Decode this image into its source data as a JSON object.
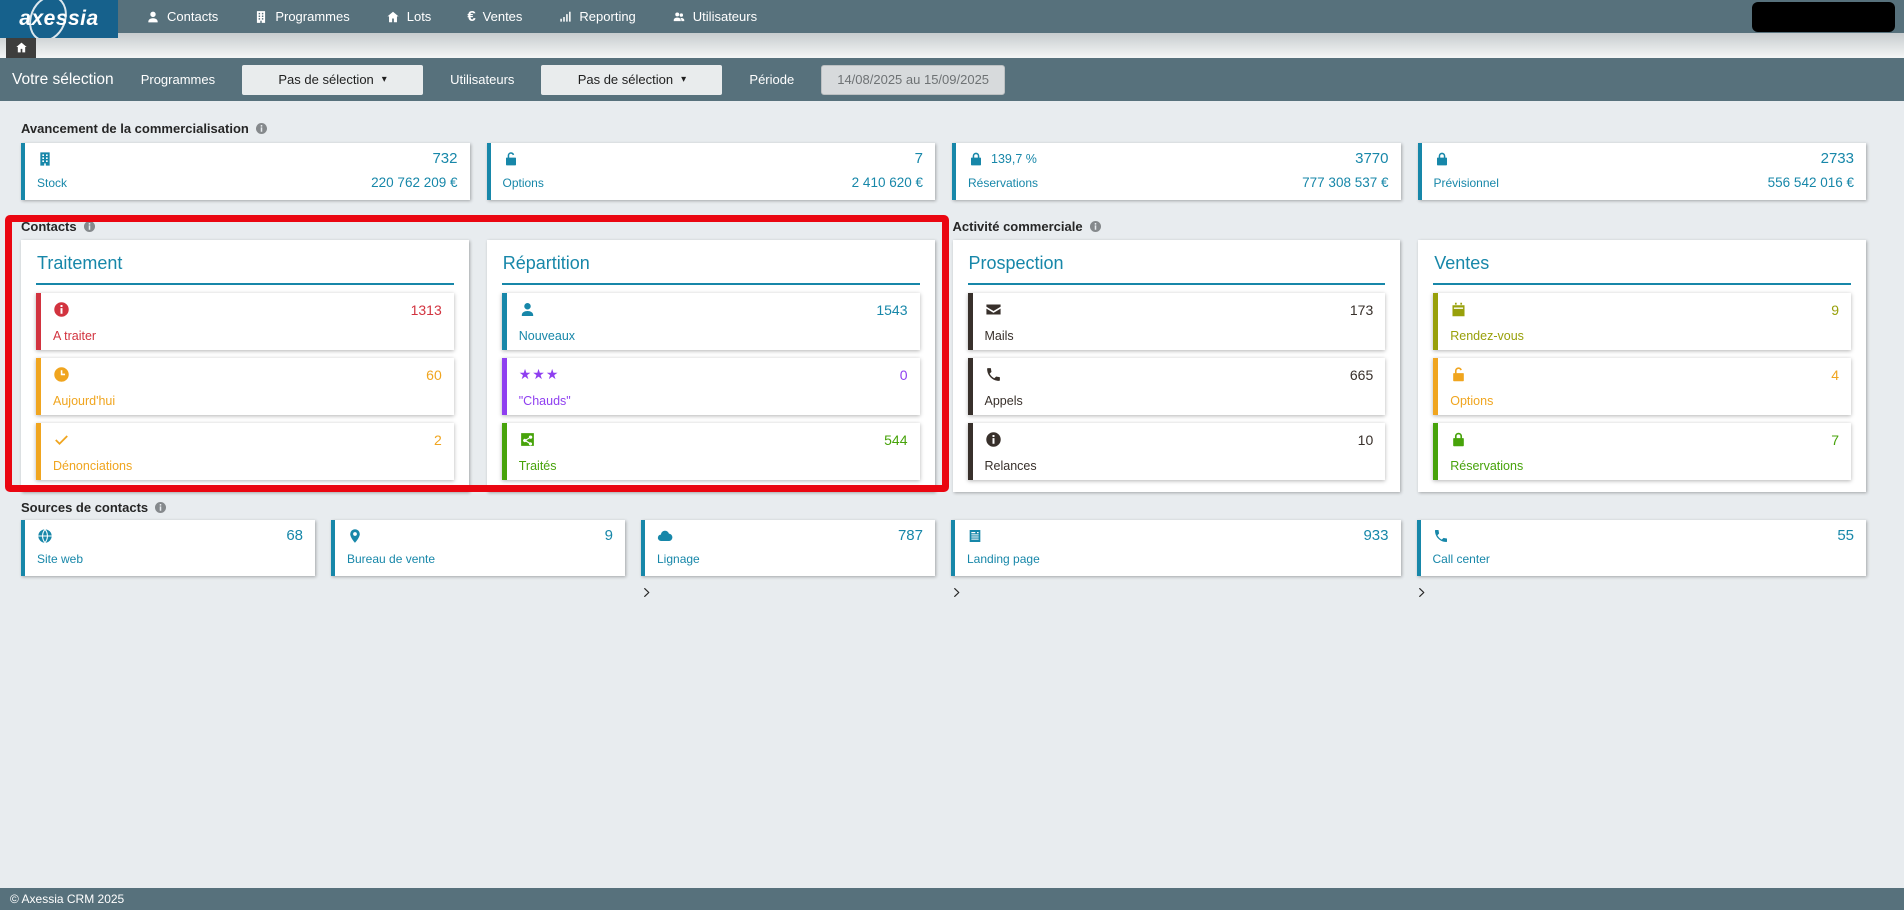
{
  "nav": {
    "logo_text": "axessia",
    "items": [
      {
        "label": "Contacts",
        "icon": "user-icon"
      },
      {
        "label": "Programmes",
        "icon": "building-icon"
      },
      {
        "label": "Lots",
        "icon": "home-icon"
      },
      {
        "label": "Ventes",
        "icon": "euro-icon"
      },
      {
        "label": "Reporting",
        "icon": "bar-chart-icon"
      },
      {
        "label": "Utilisateurs",
        "icon": "users-icon"
      }
    ]
  },
  "filters": {
    "title": "Votre sélection",
    "programs_label": "Programmes",
    "programs_value": "Pas de sélection",
    "users_label": "Utilisateurs",
    "users_value": "Pas de sélection",
    "period_label": "Période",
    "period_value": "14/08/2025 au 15/09/2025"
  },
  "sections": {
    "avancement": {
      "title": "Avancement de la commercialisation",
      "cards": [
        {
          "icon": "building-icon",
          "count": "732",
          "label": "Stock",
          "amount": "220 762 209 €"
        },
        {
          "icon": "lock-open-icon",
          "count": "7",
          "label": "Options",
          "amount": "2 410 620 €"
        },
        {
          "icon": "lock-icon",
          "icon_suffix": "139,7 %",
          "count": "3770",
          "label": "Réservations",
          "amount": "777 308 537 €"
        },
        {
          "icon": "lock-icon",
          "count": "2733",
          "label": "Prévisionnel",
          "amount": "556 542 016 €"
        }
      ]
    },
    "contacts": {
      "title": "Contacts",
      "panels": [
        {
          "title": "Traitement",
          "rows": [
            {
              "icon": "info-circle-icon",
              "label": "A traiter",
              "count": "1313",
              "color": "#d2333f"
            },
            {
              "icon": "clock-icon",
              "label": "Aujourd'hui",
              "count": "60",
              "color": "#f0a51f"
            },
            {
              "icon": "check-icon",
              "label": "Dénonciations",
              "count": "2",
              "color": "#f0a51f"
            }
          ]
        },
        {
          "title": "Répartition",
          "rows": [
            {
              "icon": "user-icon",
              "label": "Nouveaux",
              "count": "1543",
              "color": "#1787a9"
            },
            {
              "icon": "stars-icon",
              "label": "\"Chauds\"",
              "count": "0",
              "color": "#8f3ff0"
            },
            {
              "icon": "share-icon",
              "label": "Traités",
              "count": "544",
              "color": "#47a30a"
            }
          ]
        }
      ]
    },
    "activite": {
      "title": "Activité commerciale",
      "panels": [
        {
          "title": "Prospection",
          "rows": [
            {
              "icon": "envelope-icon",
              "label": "Mails",
              "count": "173",
              "color": "#38302b"
            },
            {
              "icon": "phone-icon",
              "label": "Appels",
              "count": "665",
              "color": "#38302b"
            },
            {
              "icon": "info-circle-icon",
              "label": "Relances",
              "count": "10",
              "color": "#38302b"
            }
          ]
        },
        {
          "title": "Ventes",
          "rows": [
            {
              "icon": "calendar-icon",
              "label": "Rendez-vous",
              "count": "9",
              "color": "#98a00a"
            },
            {
              "icon": "lock-open-icon",
              "label": "Options",
              "count": "4",
              "color": "#f0a51f"
            },
            {
              "icon": "lock-icon",
              "label": "Réservations",
              "count": "7",
              "color": "#47a30a"
            }
          ]
        }
      ]
    },
    "sources": {
      "title": "Sources de contacts",
      "cards": [
        {
          "icon": "globe-icon",
          "count": "68",
          "label": "Site web"
        },
        {
          "icon": "map-pin-icon",
          "count": "9",
          "label": "Bureau de vente"
        },
        {
          "icon": "cloud-icon",
          "count": "787",
          "label": "Lignage"
        },
        {
          "icon": "landing-page-icon",
          "count": "933",
          "label": "Landing page"
        },
        {
          "icon": "phone-icon",
          "count": "55",
          "label": "Call center"
        }
      ]
    }
  },
  "footer": {
    "copyright": "© Axessia CRM 2025"
  },
  "colors": {
    "accent_teal": "#1787a9",
    "navbar": "#57717c",
    "logo_bg": "#16618c",
    "red": "#d2333f",
    "orange": "#f0a51f",
    "purple": "#8f3ff0",
    "green": "#47a30a",
    "olive": "#98a00a",
    "dark": "#38302b"
  },
  "annotation": {
    "type": "highlight-rectangle",
    "color": "#ea0611"
  }
}
